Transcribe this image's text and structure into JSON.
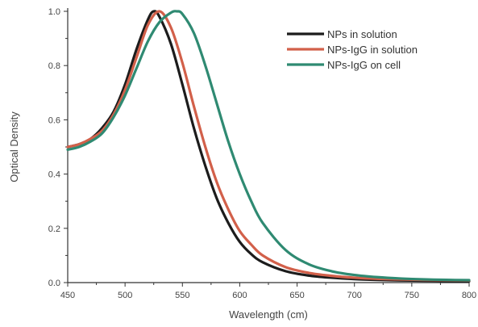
{
  "chart_data": {
    "type": "line",
    "xlabel": "Wavelength (cm)",
    "ylabel": "Optical Density",
    "xlim": [
      450,
      800
    ],
    "ylim": [
      0.0,
      1.0
    ],
    "xticks": [
      "450",
      "500",
      "550",
      "600",
      "650",
      "700",
      "750",
      "800"
    ],
    "yticks": [
      "0.0",
      "0.2",
      "0.4",
      "0.6",
      "0.8",
      "1.0"
    ],
    "legend_position": "top-right",
    "grid": false,
    "series": [
      {
        "name": "NPs in solution",
        "color": "#1c1c1c",
        "x": [
          450,
          460,
          470,
          480,
          490,
          500,
          510,
          520,
          525,
          530,
          540,
          550,
          560,
          570,
          580,
          590,
          600,
          610,
          620,
          640,
          660,
          680,
          700,
          720,
          740,
          760,
          780,
          800
        ],
        "y": [
          0.5,
          0.51,
          0.53,
          0.57,
          0.63,
          0.73,
          0.86,
          0.97,
          1.0,
          0.98,
          0.88,
          0.73,
          0.57,
          0.43,
          0.31,
          0.22,
          0.15,
          0.105,
          0.075,
          0.042,
          0.026,
          0.018,
          0.013,
          0.01,
          0.008,
          0.007,
          0.006,
          0.005
        ]
      },
      {
        "name": "NPs-IgG in solution",
        "color": "#d2604a",
        "x": [
          450,
          460,
          470,
          480,
          490,
          500,
          510,
          520,
          530,
          540,
          550,
          560,
          570,
          580,
          590,
          600,
          610,
          620,
          640,
          660,
          680,
          700,
          720,
          740,
          760,
          780,
          800
        ],
        "y": [
          0.5,
          0.51,
          0.53,
          0.56,
          0.62,
          0.71,
          0.83,
          0.95,
          1.0,
          0.94,
          0.81,
          0.65,
          0.5,
          0.37,
          0.27,
          0.19,
          0.14,
          0.1,
          0.057,
          0.036,
          0.025,
          0.018,
          0.014,
          0.012,
          0.01,
          0.009,
          0.008
        ]
      },
      {
        "name": "NPs-IgG on cell",
        "color": "#2f8a72",
        "x": [
          450,
          460,
          470,
          480,
          490,
          500,
          510,
          520,
          530,
          540,
          545,
          550,
          560,
          570,
          580,
          590,
          600,
          610,
          620,
          640,
          660,
          680,
          700,
          720,
          740,
          760,
          780,
          800
        ],
        "y": [
          0.49,
          0.5,
          0.52,
          0.55,
          0.61,
          0.69,
          0.79,
          0.89,
          0.96,
          0.995,
          1.0,
          0.99,
          0.92,
          0.8,
          0.66,
          0.52,
          0.4,
          0.3,
          0.22,
          0.12,
          0.068,
          0.042,
          0.028,
          0.02,
          0.015,
          0.012,
          0.01,
          0.009
        ]
      }
    ]
  }
}
